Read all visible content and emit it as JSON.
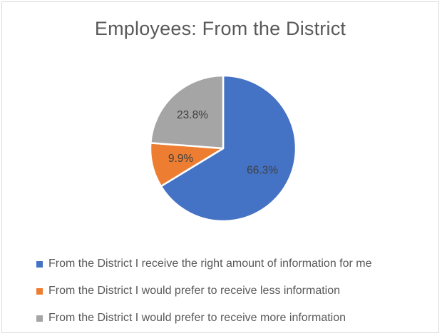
{
  "chart_data": {
    "type": "pie",
    "title": "Employees: From the District",
    "slices": [
      {
        "name": "From the District I receive the right amount of information for me",
        "value": 66.3,
        "label": "66.3%",
        "color": "#4472c4"
      },
      {
        "name": "From the District I would prefer to receive less information",
        "value": 9.9,
        "label": "9.9%",
        "color": "#ed7d31"
      },
      {
        "name": "From the District I would prefer to receive more information",
        "value": 23.8,
        "label": "23.8%",
        "color": "#a5a5a5"
      }
    ],
    "legend_position": "bottom"
  }
}
